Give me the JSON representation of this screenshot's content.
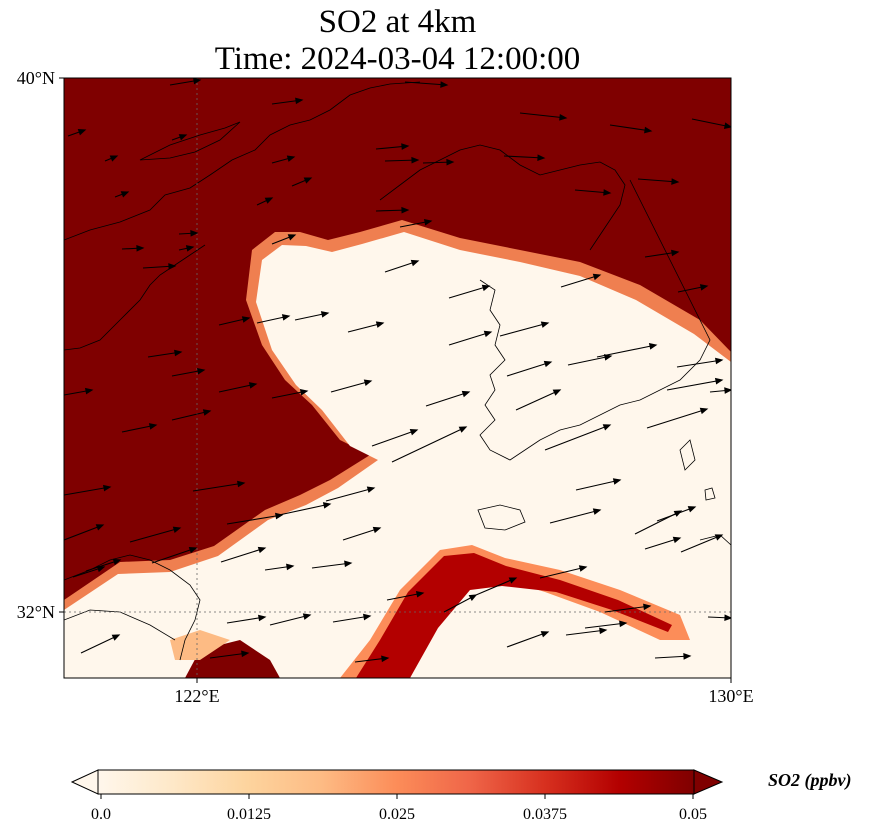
{
  "title": {
    "line1": "SO2 at 4km",
    "line2": "Time: 2024-03-04 12:00:00"
  },
  "map": {
    "extent": {
      "lon_min": 120,
      "lon_max": 130,
      "lat_min": 31,
      "lat_max": 40
    },
    "gridlines": {
      "lons": [
        122
      ],
      "lats": [
        32
      ],
      "style": "dotted"
    },
    "axis_labels": {
      "lat_top": "40°N",
      "lat_32": "32°N",
      "lon_122": "122°E",
      "lon_130": "130°E"
    }
  },
  "colorbar": {
    "label": "SO2 (ppbv)",
    "ticks": [
      "0.0",
      "0.0125",
      "0.025",
      "0.0375",
      "0.05"
    ],
    "range": [
      0,
      0.05
    ],
    "colormap": "OrRd",
    "extend": "both",
    "colors": [
      "#fff7ec",
      "#fee8c8",
      "#fdd49e",
      "#fdbb84",
      "#fc8d59",
      "#ef6548",
      "#d7301f",
      "#b30000",
      "#7f0000"
    ]
  },
  "chart_data": {
    "type": "heatmap",
    "title": "SO2 at 4km\nTime: 2024-03-04 12:00:00",
    "variable": "SO2 (ppbv)",
    "wind_vectors": "eastward to east-north-eastward",
    "field_description": "saturated (>=0.05 ppbv) over north and west; low-concentration band crossing from Yellow Sea to Korean Peninsula"
  }
}
